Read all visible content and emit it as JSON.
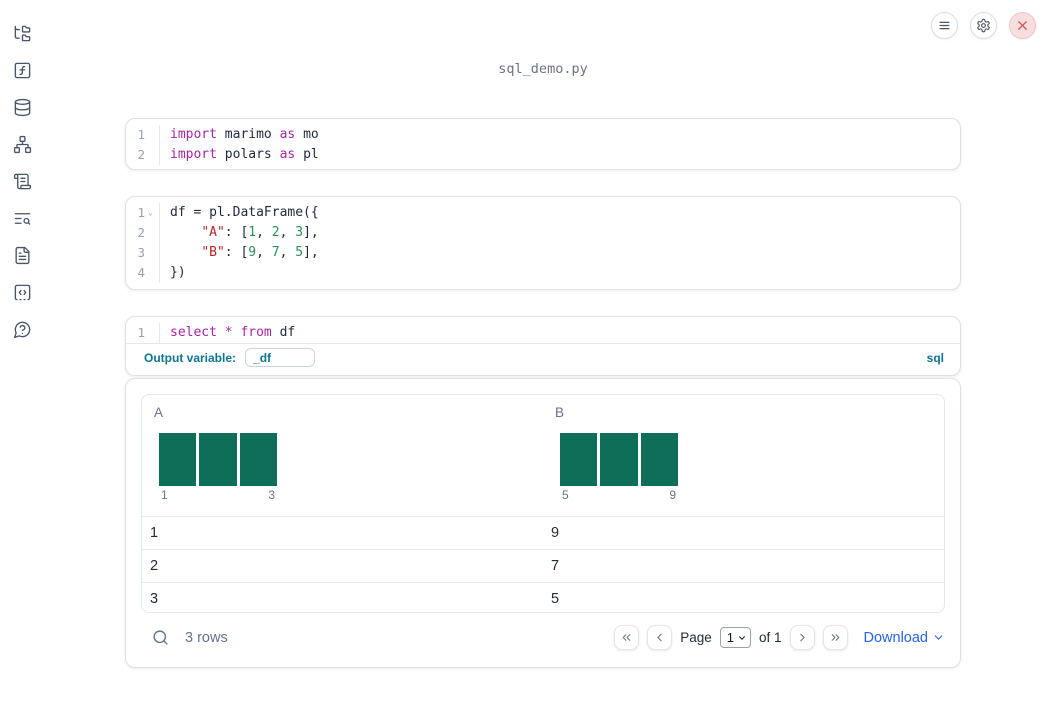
{
  "header": {
    "filename": "sql_demo.py"
  },
  "colors": {
    "accent_blue": "#2563eb",
    "sql_teal": "#0e7490",
    "keyword_purple": "#a626a4",
    "string_red": "#b22222",
    "number_green": "#2e8b57",
    "histogram_bar": "#0e6e58",
    "icon_slate": "#475569",
    "close_red": "#d35453"
  },
  "topbar": {
    "buttons": [
      {
        "name": "menu",
        "icon": "hamburger-icon"
      },
      {
        "name": "settings",
        "icon": "gear-icon"
      },
      {
        "name": "shutdown",
        "icon": "close-icon"
      }
    ]
  },
  "sidebar": {
    "items": [
      {
        "icon": "file-explorer-icon"
      },
      {
        "icon": "variables-icon"
      },
      {
        "icon": "datasources-icon"
      },
      {
        "icon": "dependency-graph-icon"
      },
      {
        "icon": "logs-icon"
      },
      {
        "icon": "text-search-icon"
      },
      {
        "icon": "documentation-icon"
      },
      {
        "icon": "snippets-icon"
      },
      {
        "icon": "help-icon"
      }
    ]
  },
  "cells": [
    {
      "type": "python",
      "lines": [
        {
          "num": "1",
          "tokens": [
            [
              "kw",
              "import"
            ],
            [
              "pl",
              " marimo "
            ],
            [
              "kw",
              "as"
            ],
            [
              "pl",
              " mo"
            ]
          ]
        },
        {
          "num": "2",
          "tokens": [
            [
              "kw",
              "import"
            ],
            [
              "pl",
              " polars "
            ],
            [
              "kw",
              "as"
            ],
            [
              "pl",
              " pl"
            ]
          ]
        }
      ]
    },
    {
      "type": "python",
      "lines": [
        {
          "num": "1",
          "fold": "⌄",
          "tokens": [
            [
              "pl",
              "df = pl.DataFrame({"
            ]
          ]
        },
        {
          "num": "2",
          "tokens": [
            [
              "pl",
              "    "
            ],
            [
              "str",
              "\"A\""
            ],
            [
              "pl",
              ": ["
            ],
            [
              "num",
              "1"
            ],
            [
              "pl",
              ", "
            ],
            [
              "num",
              "2"
            ],
            [
              "pl",
              ", "
            ],
            [
              "num",
              "3"
            ],
            [
              "pl",
              "],"
            ]
          ]
        },
        {
          "num": "3",
          "tokens": [
            [
              "pl",
              "    "
            ],
            [
              "str",
              "\"B\""
            ],
            [
              "pl",
              ": ["
            ],
            [
              "num",
              "9"
            ],
            [
              "pl",
              ", "
            ],
            [
              "num",
              "7"
            ],
            [
              "pl",
              ", "
            ],
            [
              "num",
              "5"
            ],
            [
              "pl",
              "],"
            ]
          ]
        },
        {
          "num": "4",
          "tokens": [
            [
              "pl",
              "})"
            ]
          ]
        }
      ]
    },
    {
      "type": "sql",
      "lines": [
        {
          "num": "1",
          "tokens": [
            [
              "kw",
              "select"
            ],
            [
              "pl",
              " "
            ],
            [
              "kw",
              "*"
            ],
            [
              "pl",
              " "
            ],
            [
              "kw",
              "from"
            ],
            [
              "pl",
              " df"
            ]
          ]
        }
      ],
      "footer": {
        "output_variable_label": "Output variable:",
        "output_variable_value": "_df",
        "language_label": "sql"
      }
    }
  ],
  "output_table": {
    "columns": [
      {
        "name": "A",
        "hist": {
          "bars": [
            1,
            1,
            1
          ],
          "tick_left": "1",
          "tick_right": "3"
        }
      },
      {
        "name": "B",
        "hist": {
          "bars": [
            1,
            1,
            1
          ],
          "tick_left": "5",
          "tick_right": "9"
        }
      }
    ],
    "rows": [
      [
        "1",
        "9"
      ],
      [
        "2",
        "7"
      ],
      [
        "3",
        "5"
      ]
    ],
    "footer": {
      "row_count": "3 rows",
      "page_label": "Page",
      "page_value": "1",
      "of_label": "of 1",
      "download_label": "Download"
    }
  }
}
